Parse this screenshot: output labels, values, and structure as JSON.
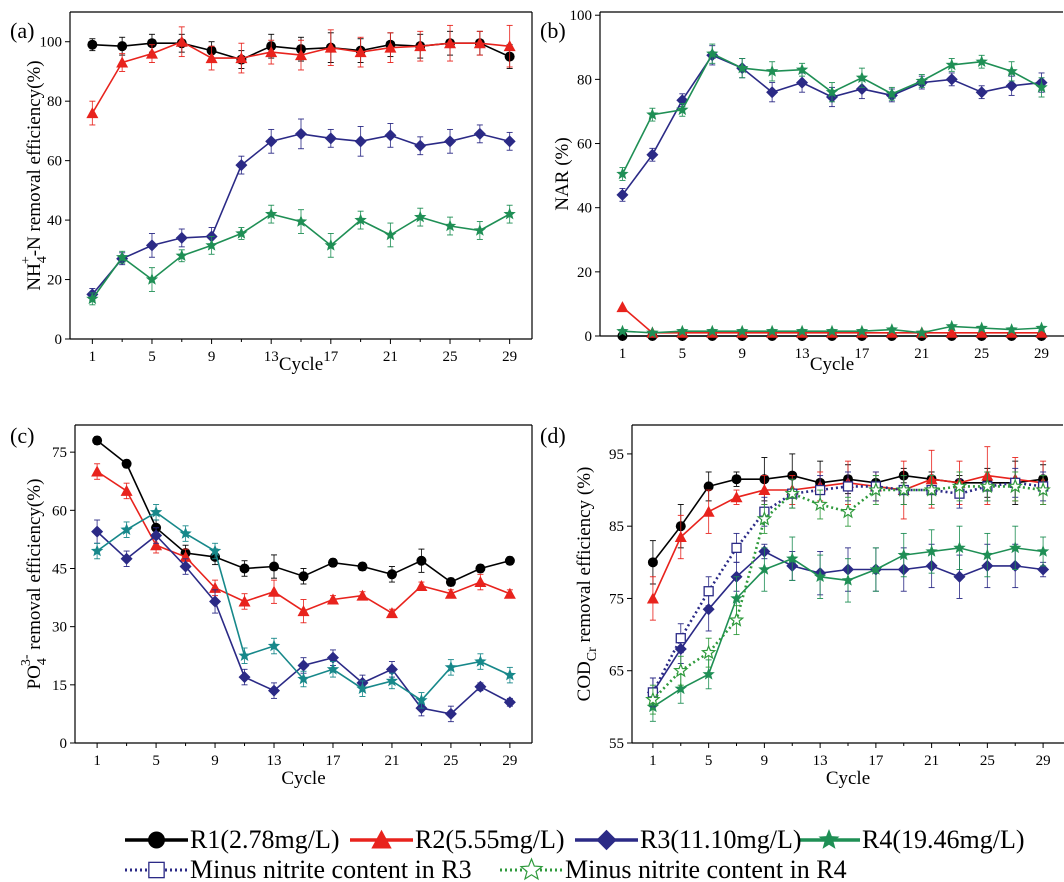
{
  "colors": {
    "R1": "#000000",
    "R2": "#e8231d",
    "R3": "#2b2a86",
    "R4": "#1f8f55",
    "R4c": "#17888a",
    "M3": "#2b2a86",
    "M4": "#2f9a3c"
  },
  "legend": {
    "r1": "R1(2.78mg/L)",
    "r2": "R2(5.55mg/L)",
    "r3": "R3(11.10mg/L)",
    "r4": "R4(19.46mg/L)",
    "m3": "Minus nitrite content in R3",
    "m4": "Minus nitrite content in R4"
  },
  "chart_data": [
    {
      "panel": "(a)",
      "type": "line",
      "xlabel": "Cycle",
      "ylabel": "NH4+-N removal efficiency(%)",
      "ylabel_parts": {
        "base": "NH",
        "sub": "4",
        "sup": "+",
        "rest": "-N removal efficiency(%)"
      },
      "x": [
        1,
        3,
        5,
        7,
        9,
        11,
        13,
        15,
        17,
        19,
        21,
        23,
        25,
        27,
        29
      ],
      "xticks": [
        1,
        5,
        9,
        13,
        17,
        21,
        25,
        29
      ],
      "yticks": [
        0,
        20,
        40,
        60,
        80,
        100
      ],
      "ylim": [
        0,
        110
      ],
      "series": [
        {
          "name": "R1(2.78mg/L)",
          "key": "R1",
          "marker": "circle",
          "values": [
            99,
            98.5,
            99.5,
            99.5,
            97,
            94,
            98.5,
            97.5,
            98,
            97,
            99,
            98.5,
            99.5,
            99.5,
            95
          ],
          "err": [
            2,
            3,
            3,
            3,
            3,
            3,
            4,
            4,
            5,
            4,
            4,
            4,
            4,
            4,
            4
          ]
        },
        {
          "name": "R2(5.55mg/L)",
          "key": "R2",
          "marker": "triangle",
          "values": [
            76,
            93,
            96,
            100,
            94.5,
            94.5,
            96.5,
            95.5,
            98,
            96.5,
            98,
            98.5,
            99.5,
            99.5,
            98.5
          ],
          "err": [
            4,
            3,
            3,
            5,
            4,
            5,
            4,
            5,
            6,
            5,
            5,
            5,
            6,
            4,
            7
          ]
        },
        {
          "name": "R3(11.10mg/L)",
          "key": "R3",
          "marker": "diamond",
          "values": [
            15,
            27,
            31.5,
            34,
            34.5,
            58.5,
            66.5,
            69,
            67.5,
            66.5,
            68.5,
            65,
            66.5,
            69,
            66.5
          ],
          "err": [
            2,
            2,
            4,
            3,
            3,
            3,
            4,
            5,
            3,
            5,
            4,
            3,
            4,
            3,
            3
          ]
        },
        {
          "name": "R4(19.46mg/L)",
          "key": "R4",
          "marker": "star",
          "values": [
            13.5,
            27.5,
            20,
            28,
            31.5,
            35.5,
            42,
            39.5,
            31.5,
            40,
            35,
            41,
            38,
            36.5,
            42
          ],
          "err": [
            2,
            2,
            4,
            2,
            3,
            2,
            3,
            4,
            4,
            3,
            4,
            3,
            3,
            3,
            3
          ]
        }
      ]
    },
    {
      "panel": "(b)",
      "type": "line",
      "xlabel": "Cycle",
      "ylabel": "NAR (%)",
      "x": [
        1,
        3,
        5,
        7,
        9,
        11,
        13,
        15,
        17,
        19,
        21,
        23,
        25,
        27,
        29
      ],
      "xticks": [
        1,
        5,
        9,
        13,
        17,
        21,
        25,
        29
      ],
      "yticks": [
        0,
        20,
        40,
        60,
        80,
        100
      ],
      "ylim": [
        0,
        101
      ],
      "series": [
        {
          "name": "R1(2.78mg/L)",
          "key": "R1",
          "marker": "circle",
          "values": [
            0,
            0,
            0,
            0,
            0,
            0,
            0,
            0,
            0,
            0,
            0,
            0,
            0,
            0,
            0
          ],
          "err": [
            0,
            0,
            0,
            0,
            0,
            0,
            0,
            0,
            0,
            0,
            0,
            0,
            0,
            0,
            0
          ]
        },
        {
          "name": "R2(5.55mg/L)",
          "key": "R2",
          "marker": "triangle",
          "values": [
            9,
            1,
            1,
            1,
            1,
            1,
            1,
            1,
            1,
            1,
            1,
            1,
            1,
            1,
            1
          ],
          "err": [
            0,
            0,
            0,
            0,
            0,
            0,
            0,
            0,
            0,
            0,
            0,
            0,
            0,
            0,
            0
          ]
        },
        {
          "name": "R3(11.10mg/L)",
          "key": "R3",
          "marker": "diamond",
          "values": [
            44,
            56.5,
            73.5,
            87.5,
            83.5,
            76,
            79,
            74.5,
            77,
            75,
            79,
            80,
            76,
            78,
            79
          ],
          "err": [
            2,
            2,
            2,
            3,
            3,
            3,
            3,
            3,
            3,
            2,
            2,
            2,
            2,
            3,
            3
          ]
        },
        {
          "name": "R4(19.46mg/L)",
          "key": "R4",
          "marker": "star",
          "values": [
            50.5,
            69,
            70.5,
            88,
            83.5,
            82.5,
            83,
            76,
            80.5,
            75.5,
            79.5,
            84.5,
            85.5,
            82.5,
            77.5
          ],
          "err": [
            2,
            2,
            2,
            3,
            3,
            3,
            2,
            3,
            3,
            2,
            2,
            2,
            2,
            3,
            3
          ]
        },
        {
          "name": "R4 low",
          "key": "R4",
          "marker": "star",
          "values": [
            1.5,
            1,
            1.5,
            1.5,
            1.5,
            1.5,
            1.5,
            1.5,
            1.5,
            2,
            1,
            3,
            2.5,
            2,
            2.5
          ],
          "err": [
            0,
            0,
            0,
            0,
            0,
            0,
            0,
            0,
            0,
            0,
            0,
            0,
            0,
            0,
            0
          ]
        }
      ]
    },
    {
      "panel": "(c)",
      "type": "line",
      "xlabel": "Cycle",
      "ylabel": "PO43- removal efficiency(%)",
      "ylabel_parts": {
        "base": "PO",
        "sub": "4",
        "sup": "3-",
        "rest": " removal efficiency(%)"
      },
      "x": [
        1,
        3,
        5,
        7,
        9,
        11,
        13,
        15,
        17,
        19,
        21,
        23,
        25,
        27,
        29
      ],
      "xticks": [
        1,
        5,
        9,
        13,
        17,
        21,
        25,
        29
      ],
      "yticks": [
        0,
        15,
        30,
        45,
        60,
        75
      ],
      "ylim": [
        0,
        82
      ],
      "series": [
        {
          "name": "R1(2.78mg/L)",
          "key": "R1",
          "marker": "circle",
          "values": [
            78,
            72,
            55.5,
            49,
            48,
            45,
            45.5,
            43,
            46.5,
            45.5,
            43.5,
            47,
            41.5,
            45,
            47
          ],
          "err": [
            1,
            1,
            2,
            2,
            2,
            2,
            3,
            2,
            1,
            1,
            2,
            3,
            1,
            1,
            1
          ]
        },
        {
          "name": "R2(5.55mg/L)",
          "key": "R2",
          "marker": "triangle",
          "values": [
            70,
            65,
            51,
            48,
            40,
            36.5,
            39,
            34,
            37,
            38,
            33.5,
            40.5,
            38.5,
            41.5,
            38.5
          ],
          "err": [
            2,
            2,
            2,
            2,
            2,
            2,
            3,
            3,
            1,
            1,
            1,
            1,
            1,
            2,
            1
          ]
        },
        {
          "name": "R3(11.10mg/L)",
          "key": "R3",
          "marker": "diamond",
          "values": [
            54.5,
            47.5,
            53.5,
            45.5,
            36.5,
            17,
            13.5,
            20,
            22,
            15.5,
            19,
            9,
            7.5,
            14.5,
            10.5
          ],
          "err": [
            3,
            2,
            2,
            2,
            3,
            2,
            2,
            2,
            2,
            2,
            2,
            2,
            2,
            1,
            1
          ]
        },
        {
          "name": "R4(19.46mg/L)",
          "key": "R4c",
          "marker": "star",
          "values": [
            49.5,
            55,
            59.5,
            54,
            49.5,
            22.5,
            25,
            16.5,
            19,
            14,
            16,
            11,
            19.5,
            21,
            17.5
          ],
          "err": [
            2,
            2,
            2,
            2,
            2,
            2,
            2,
            2,
            2,
            2,
            2,
            2,
            2,
            2,
            2
          ]
        }
      ]
    },
    {
      "panel": "(d)",
      "type": "line",
      "xlabel": "Cycle",
      "ylabel": "CODCr removal efficiency (%)",
      "ylabel_parts": {
        "base": "COD",
        "sub": "Cr",
        "sup": "",
        "rest": " removal efficiency (%)"
      },
      "x": [
        1,
        3,
        5,
        7,
        9,
        11,
        13,
        15,
        17,
        19,
        21,
        23,
        25,
        27,
        29
      ],
      "xticks": [
        1,
        5,
        9,
        13,
        17,
        21,
        25,
        29
      ],
      "yticks": [
        55,
        65,
        75,
        85,
        95
      ],
      "ylim": [
        55,
        99
      ],
      "series": [
        {
          "name": "R1(2.78mg/L)",
          "key": "R1",
          "marker": "circle",
          "values": [
            80,
            85,
            90.5,
            91.5,
            91.5,
            92,
            91,
            91.5,
            91,
            92,
            91.5,
            91,
            91,
            91,
            91.5
          ],
          "err": [
            3,
            3,
            2,
            1,
            3,
            3,
            3,
            2,
            1,
            1,
            1,
            1,
            2,
            3,
            2
          ]
        },
        {
          "name": "R2(5.55mg/L)",
          "key": "R2",
          "marker": "triangle",
          "values": [
            75,
            83.5,
            87,
            89,
            90,
            90,
            90.5,
            91,
            90.5,
            90,
            91.5,
            91,
            92,
            91.5,
            91
          ],
          "err": [
            3,
            3,
            3,
            1,
            2,
            2,
            2,
            3,
            2,
            4,
            4,
            3,
            4,
            3,
            3
          ]
        },
        {
          "name": "R3(11.10mg/L)",
          "key": "R3",
          "marker": "diamond",
          "values": [
            62,
            68,
            73.5,
            78,
            81.5,
            79.5,
            78.5,
            79,
            79,
            79,
            79.5,
            78,
            79.5,
            79.5,
            79
          ],
          "err": [
            2,
            2,
            3,
            2,
            1,
            2,
            3,
            3,
            3,
            3,
            3,
            3,
            3,
            3,
            1
          ]
        },
        {
          "name": "R4(19.46mg/L)",
          "key": "R4",
          "marker": "star",
          "values": [
            60,
            62.5,
            64.5,
            75,
            79,
            80.5,
            78,
            77.5,
            79,
            81,
            81.5,
            82,
            81,
            82,
            81.5
          ],
          "err": [
            2,
            2,
            2,
            3,
            3,
            3,
            3,
            3,
            3,
            3,
            3,
            3,
            3,
            3,
            2
          ]
        },
        {
          "name": "Minus nitrite content in R3",
          "key": "M3",
          "marker": "square",
          "dotted": true,
          "values": [
            62,
            69.5,
            76,
            82,
            87,
            89.5,
            90,
            90.5,
            90.5,
            90,
            90,
            89.5,
            90.5,
            91,
            90.5
          ],
          "err": [
            2,
            2,
            2,
            2,
            2,
            2,
            2,
            2,
            2,
            2,
            2,
            2,
            2,
            2,
            2
          ]
        },
        {
          "name": "Minus nitrite content in R4",
          "key": "M4",
          "marker": "openstar",
          "dotted": true,
          "values": [
            61,
            65,
            67.5,
            72,
            86,
            89.5,
            88,
            87,
            90,
            90,
            90,
            90.5,
            90.5,
            90.5,
            90
          ],
          "err": [
            2,
            2,
            2,
            2,
            2,
            2,
            2,
            2,
            2,
            2,
            2,
            2,
            2,
            2,
            2
          ]
        }
      ]
    }
  ]
}
